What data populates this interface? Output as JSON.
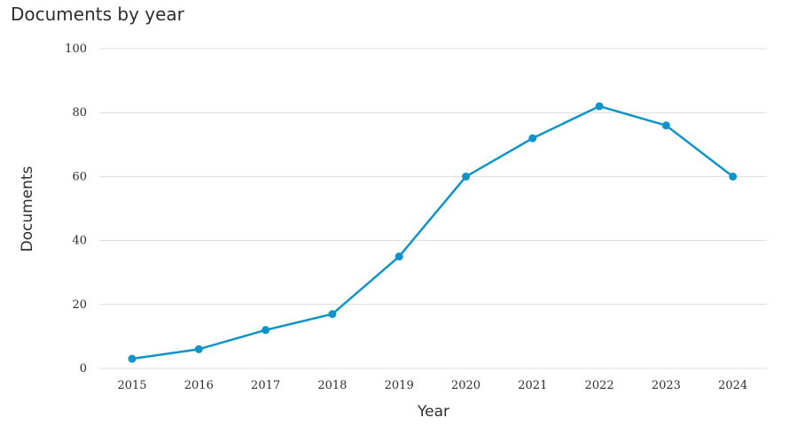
{
  "chart_data": {
    "type": "line",
    "title": "Documents by year",
    "xlabel": "Year",
    "ylabel": "Documents",
    "categories": [
      "2015",
      "2016",
      "2017",
      "2018",
      "2019",
      "2020",
      "2021",
      "2022",
      "2023",
      "2024"
    ],
    "series": [
      {
        "values": [
          3,
          6,
          12,
          17,
          35,
          60,
          72,
          82,
          76,
          60
        ]
      }
    ],
    "ylim": [
      0,
      100
    ],
    "yticks": [
      0,
      20,
      40,
      60,
      80,
      100
    ],
    "grid": true,
    "colors": {
      "line": "#0e94c8",
      "grid": "#dcdcdc"
    }
  }
}
